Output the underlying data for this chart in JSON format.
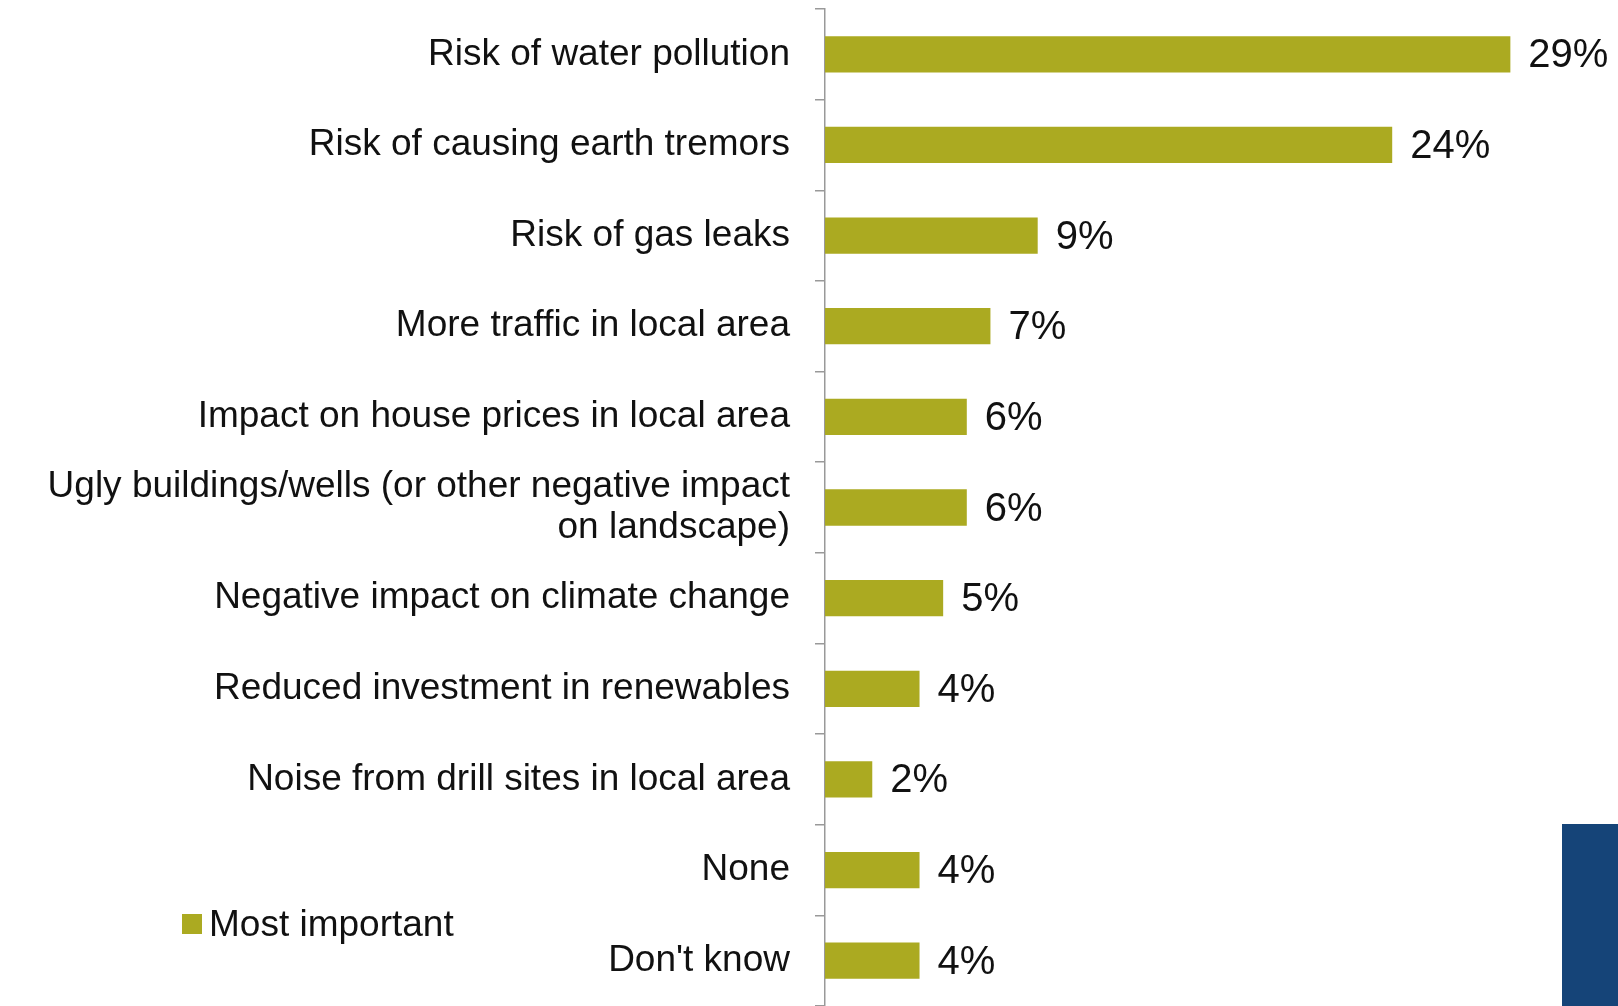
{
  "chart_data": {
    "type": "bar",
    "orientation": "horizontal",
    "tick_labels": "y",
    "legend": "bottom left",
    "categories": [
      "Risk of water pollution",
      "Risk of causing earth tremors",
      "Risk of gas leaks",
      "More traffic in local area",
      "Impact on house prices in local area",
      "Ugly buildings/wells (or other negative impact on landscape)",
      "Negative impact on climate change",
      "Reduced investment in renewables",
      "Noise from drill sites in local area",
      "None",
      "Don't know"
    ],
    "series": [
      {
        "name": "Most important",
        "color": "#abaa21",
        "values": [
          29,
          24,
          9,
          7,
          6,
          6,
          5,
          4,
          2,
          4,
          4
        ],
        "value_labels": [
          "29%",
          "24%",
          "9%",
          "7%",
          "6%",
          "6%",
          "5%",
          "4%",
          "2%",
          "4%",
          "4%"
        ]
      }
    ]
  }
}
